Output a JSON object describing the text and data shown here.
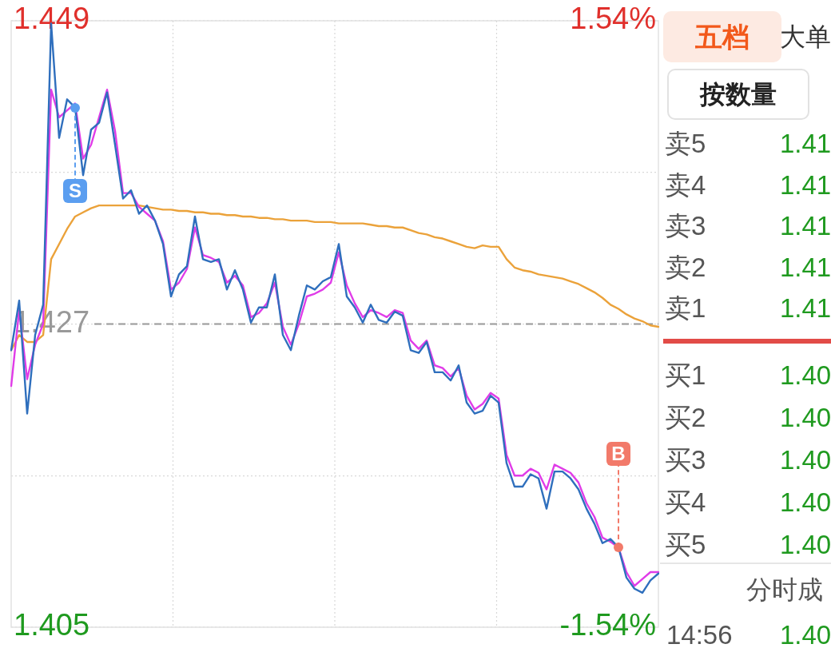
{
  "chart_data": [
    {
      "type": "line",
      "categories": [
        null,
        null,
        null,
        null,
        null,
        null,
        null,
        null,
        null,
        null,
        null,
        null,
        null,
        null,
        null,
        null,
        null,
        null,
        null,
        null,
        null,
        null,
        null,
        null,
        null,
        null,
        null,
        null,
        null,
        null,
        null,
        null,
        null,
        null,
        null,
        null,
        null,
        null,
        null,
        null,
        null,
        null,
        null,
        null,
        null,
        null,
        null,
        null,
        null,
        null,
        null,
        null,
        null,
        null,
        null,
        null,
        null,
        null,
        null,
        null,
        null,
        null,
        null,
        null,
        null,
        null,
        null,
        null,
        null,
        null,
        null,
        null,
        null,
        null,
        null,
        null,
        null,
        null,
        null,
        null,
        null,
        null
      ],
      "ylim": [
        1.405,
        1.449
      ],
      "yticks": [
        1.405,
        {
          "value": 1.416,
          "label": null
        },
        1.427,
        {
          "value": 1.438,
          "label": null
        },
        1.449
      ],
      "y2lim": [
        -1.54,
        1.54
      ],
      "y2ticks": [
        {
          "value": -1.54,
          "label": "-1.54%"
        },
        {
          "value": 1.54,
          "label": "1.54%"
        }
      ],
      "tick_labels": "y",
      "grid": true,
      "legend": false,
      "marker": "none",
      "line_style": "solid",
      "ref_lines": [
        {
          "axis": "y",
          "value": 1.427,
          "color": "#999999",
          "line_style": "dashed"
        }
      ],
      "annotations": [
        {
          "text": "S",
          "y": 1.4427
        },
        {
          "text": "B",
          "y": 1.4108
        }
      ],
      "series": [
        {
          "color": "#2f6fbd",
          "values": [
            1.4251,
            1.4287,
            1.4205,
            1.4262,
            1.4284,
            1.4488,
            1.4405,
            1.4433,
            1.4427,
            1.4378,
            1.4411,
            1.4416,
            1.4438,
            1.44,
            1.4361,
            1.4367,
            1.435,
            1.4356,
            1.4345,
            1.4328,
            1.429,
            1.4306,
            1.4312,
            1.4348,
            1.4317,
            1.4315,
            1.4317,
            1.4295,
            1.4309,
            1.4295,
            1.4271,
            1.4282,
            1.4282,
            1.4306,
            1.4262,
            1.4251,
            1.4276,
            1.4298,
            1.4295,
            1.4301,
            1.4304,
            1.4328,
            1.429,
            1.4282,
            1.4271,
            1.4284,
            1.4273,
            1.4271,
            1.4279,
            1.4276,
            1.4251,
            1.4249,
            1.4257,
            1.4235,
            1.4235,
            1.4229,
            1.424,
            1.4213,
            1.4205,
            1.4207,
            1.4218,
            1.4213,
            1.4169,
            1.4152,
            1.4152,
            1.4161,
            1.4158,
            1.4136,
            1.4163,
            1.4163,
            1.4158,
            1.415,
            1.4136,
            1.4125,
            1.4111,
            1.4114,
            1.4108,
            1.4086,
            1.4078,
            1.4075,
            1.4084,
            1.4089
          ]
        },
        {
          "color": "#e03ce8",
          "values": [
            1.4225,
            1.428,
            1.423,
            1.4255,
            1.427,
            1.444,
            1.442,
            1.4425,
            1.443,
            1.439,
            1.44,
            1.442,
            1.444,
            1.441,
            1.4365,
            1.4365,
            1.4355,
            1.435,
            1.4345,
            1.433,
            1.4295,
            1.43,
            1.431,
            1.434,
            1.432,
            1.4318,
            1.4315,
            1.43,
            1.4305,
            1.4298,
            1.4275,
            1.4278,
            1.4285,
            1.43,
            1.4268,
            1.4255,
            1.427,
            1.429,
            1.4292,
            1.4295,
            1.43,
            1.4322,
            1.4298,
            1.4285,
            1.4275,
            1.428,
            1.4278,
            1.4275,
            1.428,
            1.4278,
            1.4258,
            1.4252,
            1.4258,
            1.424,
            1.4238,
            1.4232,
            1.4238,
            1.4218,
            1.4208,
            1.4212,
            1.422,
            1.4216,
            1.4175,
            1.416,
            1.416,
            1.4165,
            1.4162,
            1.415,
            1.4168,
            1.4165,
            1.4162,
            1.4155,
            1.414,
            1.413,
            1.4115,
            1.4112,
            1.4108,
            1.409,
            1.408,
            1.4085,
            1.409,
            1.409
          ]
        },
        {
          "color": "#eba23a",
          "values": [
            1.4251,
            1.4262,
            1.4257,
            1.4257,
            1.4262,
            1.4317,
            1.4328,
            1.4339,
            1.4348,
            1.4351,
            1.4354,
            1.4356,
            1.4356,
            1.4356,
            1.4356,
            1.4356,
            1.4356,
            1.4355,
            1.4354,
            1.4353,
            1.4353,
            1.4352,
            1.4352,
            1.4351,
            1.4351,
            1.435,
            1.435,
            1.4349,
            1.4349,
            1.4348,
            1.4348,
            1.4347,
            1.4347,
            1.4346,
            1.4346,
            1.4345,
            1.4345,
            1.4345,
            1.4344,
            1.4344,
            1.4344,
            1.4343,
            1.4343,
            1.4343,
            1.4343,
            1.4342,
            1.4341,
            1.4341,
            1.434,
            1.434,
            1.4338,
            1.4336,
            1.4335,
            1.4333,
            1.4332,
            1.433,
            1.4328,
            1.4326,
            1.4325,
            1.4327,
            1.4326,
            1.4326,
            1.4317,
            1.4311,
            1.4309,
            1.4308,
            1.4306,
            1.4305,
            1.4304,
            1.4303,
            1.4301,
            1.4299,
            1.4296,
            1.4293,
            1.4289,
            1.4284,
            1.4281,
            1.4277,
            1.4274,
            1.4272,
            1.4269,
            1.4268
          ]
        }
      ]
    },
    {
      "type": "other",
      "title": "五档",
      "annotations": [
        "大单",
        "按数量",
        "卖5",
        "1.41",
        "卖4",
        "1.41",
        "卖3",
        "1.41",
        "卖2",
        "1.41",
        "卖1",
        "1.41",
        "买1",
        "1.40",
        "买2",
        "1.40",
        "买3",
        "1.40",
        "买4",
        "1.40",
        "买5",
        "1.40",
        "分时成",
        "14:56",
        "1.40"
      ]
    }
  ]
}
